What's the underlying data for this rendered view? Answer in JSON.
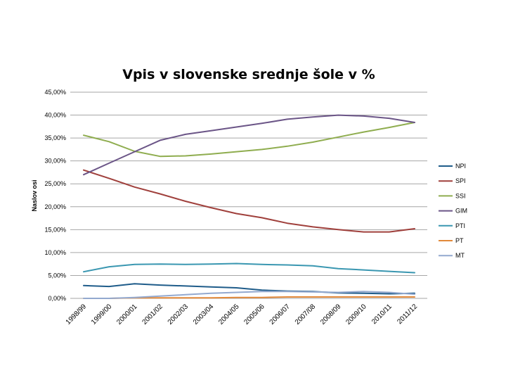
{
  "chart_data": {
    "type": "line",
    "title": "Vpis v slovenske srednje šole v %",
    "xlabel": "",
    "ylabel": "Naslov osi",
    "ylim": [
      0,
      45
    ],
    "yticks": [
      "0,00%",
      "5,00%",
      "10,00%",
      "15,00%",
      "20,00%",
      "25,00%",
      "30,00%",
      "35,00%",
      "40,00%",
      "45,00%"
    ],
    "grid": true,
    "legend_position": "right",
    "categories": [
      "1998/99",
      "1999/00",
      "2000/01",
      "2001/02",
      "2002/03",
      "2003/04",
      "2004/05",
      "2005/06",
      "2006/07",
      "2007/08",
      "2008/09",
      "2009/10",
      "2010/11",
      "2011/12"
    ],
    "series": [
      {
        "name": "NPI",
        "color": "#1f5c8a",
        "values": [
          2.8,
          2.6,
          3.2,
          2.9,
          2.7,
          2.5,
          2.3,
          1.8,
          1.6,
          1.5,
          1.2,
          1.1,
          1.0,
          1.1
        ]
      },
      {
        "name": "SPI",
        "color": "#a0403c",
        "values": [
          28.0,
          26.2,
          24.3,
          22.8,
          21.2,
          19.8,
          18.5,
          17.6,
          16.4,
          15.6,
          15.0,
          14.5,
          14.5,
          15.2
        ]
      },
      {
        "name": "SSI",
        "color": "#8fad4f",
        "values": [
          35.6,
          34.2,
          32.1,
          31.0,
          31.1,
          31.5,
          32.0,
          32.5,
          33.2,
          34.1,
          35.2,
          36.3,
          37.3,
          38.4
        ]
      },
      {
        "name": "GIM",
        "color": "#6b5587",
        "values": [
          27.0,
          29.5,
          32.0,
          34.5,
          35.8,
          36.6,
          37.4,
          38.2,
          39.1,
          39.6,
          40.0,
          39.8,
          39.3,
          38.4
        ]
      },
      {
        "name": "PTI",
        "color": "#3a97b1",
        "values": [
          5.8,
          6.9,
          7.4,
          7.5,
          7.4,
          7.5,
          7.6,
          7.4,
          7.3,
          7.1,
          6.5,
          6.2,
          5.9,
          5.6
        ]
      },
      {
        "name": "PT",
        "color": "#e2893a",
        "values": [
          0.0,
          0.0,
          0.1,
          0.1,
          0.1,
          0.1,
          0.2,
          0.2,
          0.3,
          0.3,
          0.3,
          0.3,
          0.3,
          0.3
        ]
      },
      {
        "name": "MT",
        "color": "#93a9cf",
        "values": [
          0.0,
          0.0,
          0.2,
          0.5,
          0.8,
          1.1,
          1.3,
          1.5,
          1.5,
          1.4,
          1.3,
          1.5,
          1.3,
          0.9
        ]
      }
    ]
  }
}
